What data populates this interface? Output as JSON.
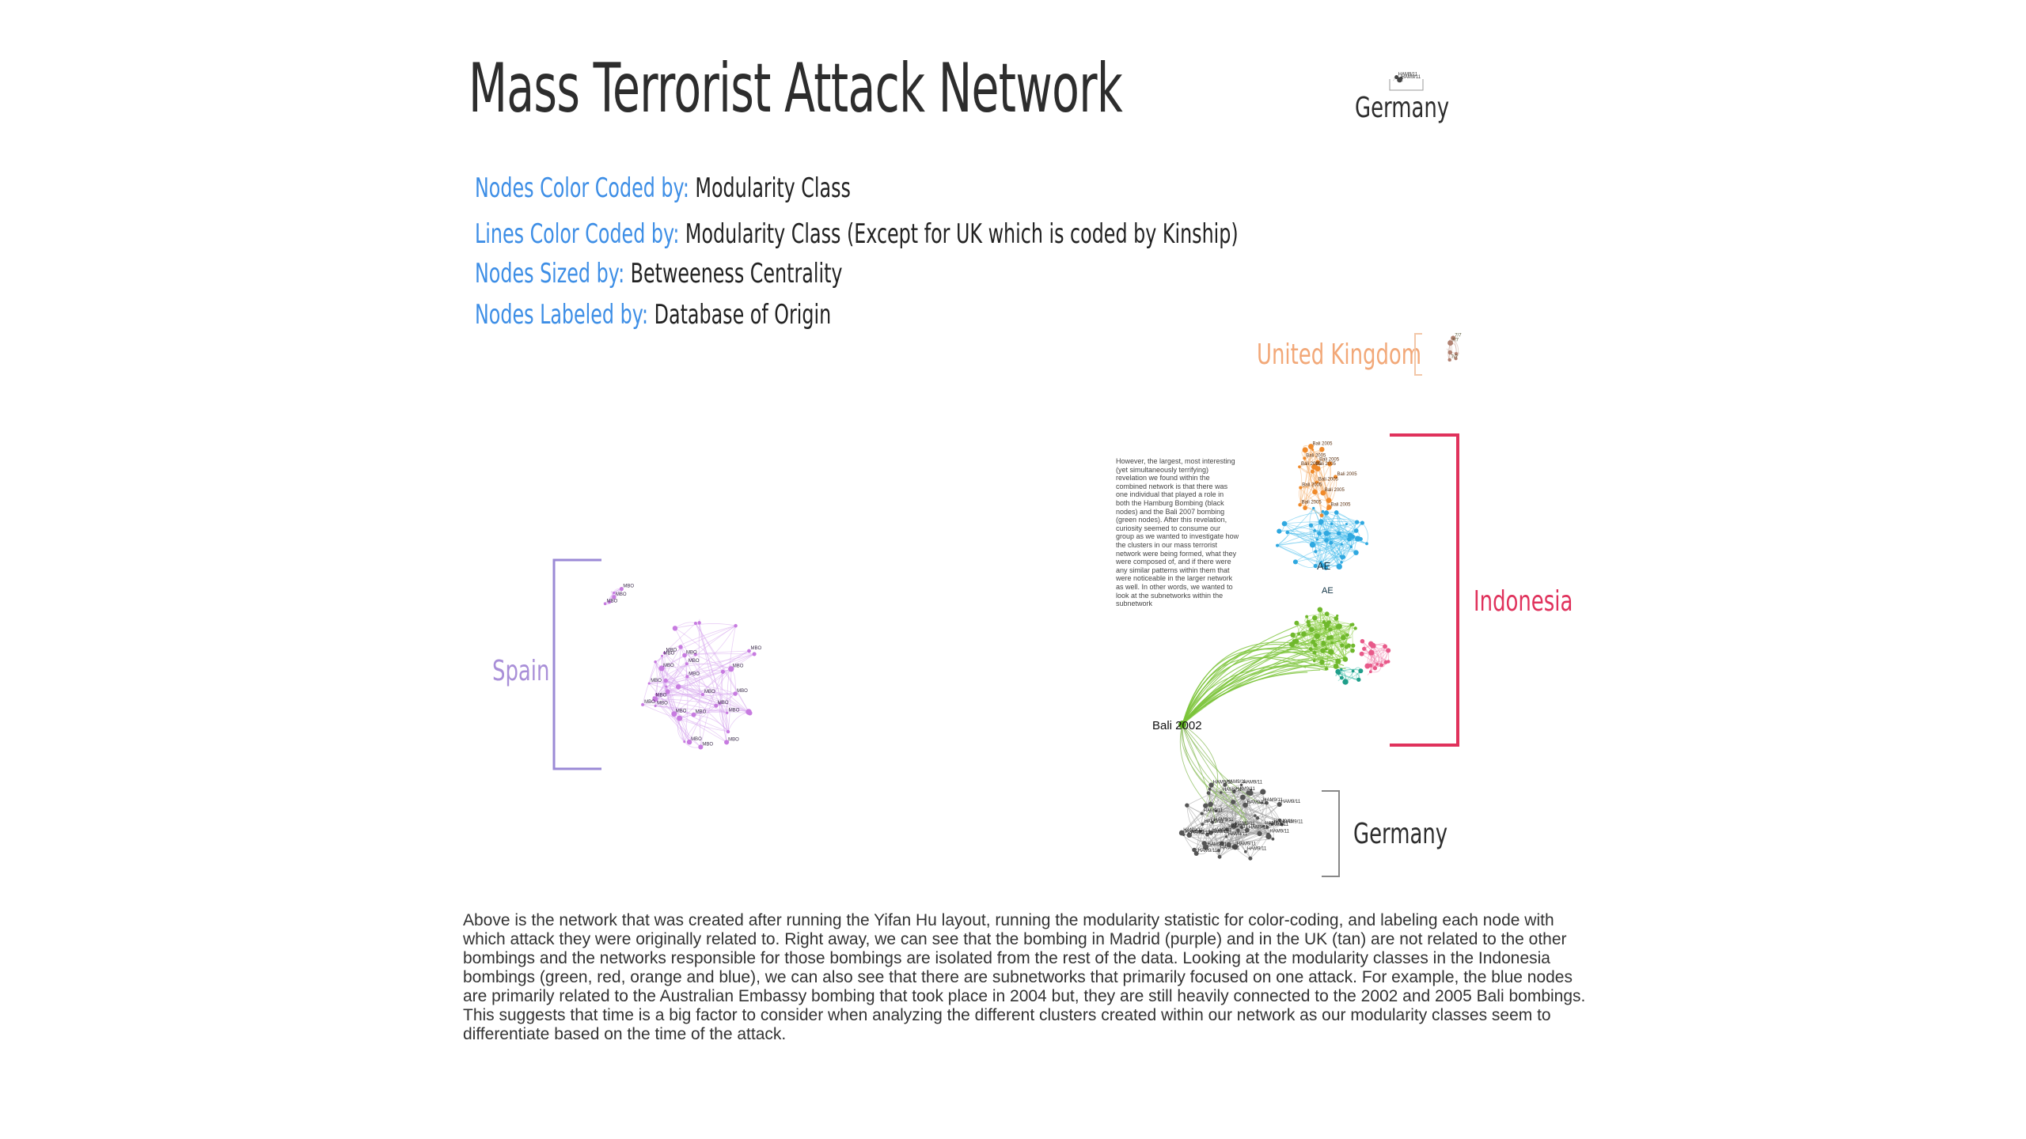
{
  "title": "Mass Terrorist Attack Network",
  "legend": [
    {
      "key": "Nodes Color Coded by:",
      "value": "Modularity Class"
    },
    {
      "key": "Lines Color Coded by:",
      "value": "Modularity Class (Except for UK which is coded by Kinship)"
    },
    {
      "key": "Nodes Sized by:",
      "value": "Betweeness Centrality"
    },
    {
      "key": "Nodes Labeled by:",
      "value": "Database of Origin"
    }
  ],
  "regions": {
    "germany_top": "Germany",
    "united_kingdom": "United Kingdom",
    "spain": "Spain",
    "indonesia": "Indonesia",
    "germany_bottom": "Germany"
  },
  "node_labels": {
    "bali2002": "Bali 2002",
    "ae": "AE",
    "ae2": "AE",
    "mbo": "MBO",
    "hamburg": "HAM9/11",
    "bali2005": "Bali 2005",
    "uk": "7/7"
  },
  "side_text": "However, the largest, most interesting (yet simultaneously terrifying) revelation we found within the combined network is that there was one individual that played a role in both the Hamburg Bombing (black nodes) and the Bali 2007 bombing (green nodes). After this revelation, curiosity seemed to consume our group as we wanted to investigate how the clusters in our mass terrorist network were being formed, what they were composed of, and if there were any similar patterns within them that were noticeable in the larger network as well. In other words, we wanted to look at the subnetworks within the subnetwork",
  "bottom_text": "Above is the network that was created after running the Yifan Hu layout, running the modularity statistic for color-coding, and labeling each node with which attack they were originally related to. Right away, we can see that the bombing in Madrid (purple) and in the UK (tan) are not related to the other bombings and the networks responsible for those bombings are isolated from the rest of the data. Looking at the modularity classes in the Indonesia bombings (green, red, orange and blue), we can also see that there are subnetworks that primarily focused on one attack. For example, the blue nodes are primarily related to the Australian Embassy bombing that took place in 2004 but, they are still heavily connected to the 2002 and 2005 Bali bombings. This suggests that time is a big factor to consider when analyzing the different clusters created within our network as our modularity classes seem to differentiate based on the time of the attack.",
  "colors": {
    "title": "#2d2d2d",
    "legend_key": "#3d8ee6",
    "spain": "#a98fd8",
    "spain_nodes": "#c77be0",
    "uk": "#f2a878",
    "indonesia": "#e0325c",
    "germany": "#222222",
    "green": "#6fb82c",
    "blue": "#2fa8e0",
    "orange": "#f08a2a",
    "pink": "#e85a8a",
    "teal": "#1f9e8a",
    "gray": "#555555"
  }
}
